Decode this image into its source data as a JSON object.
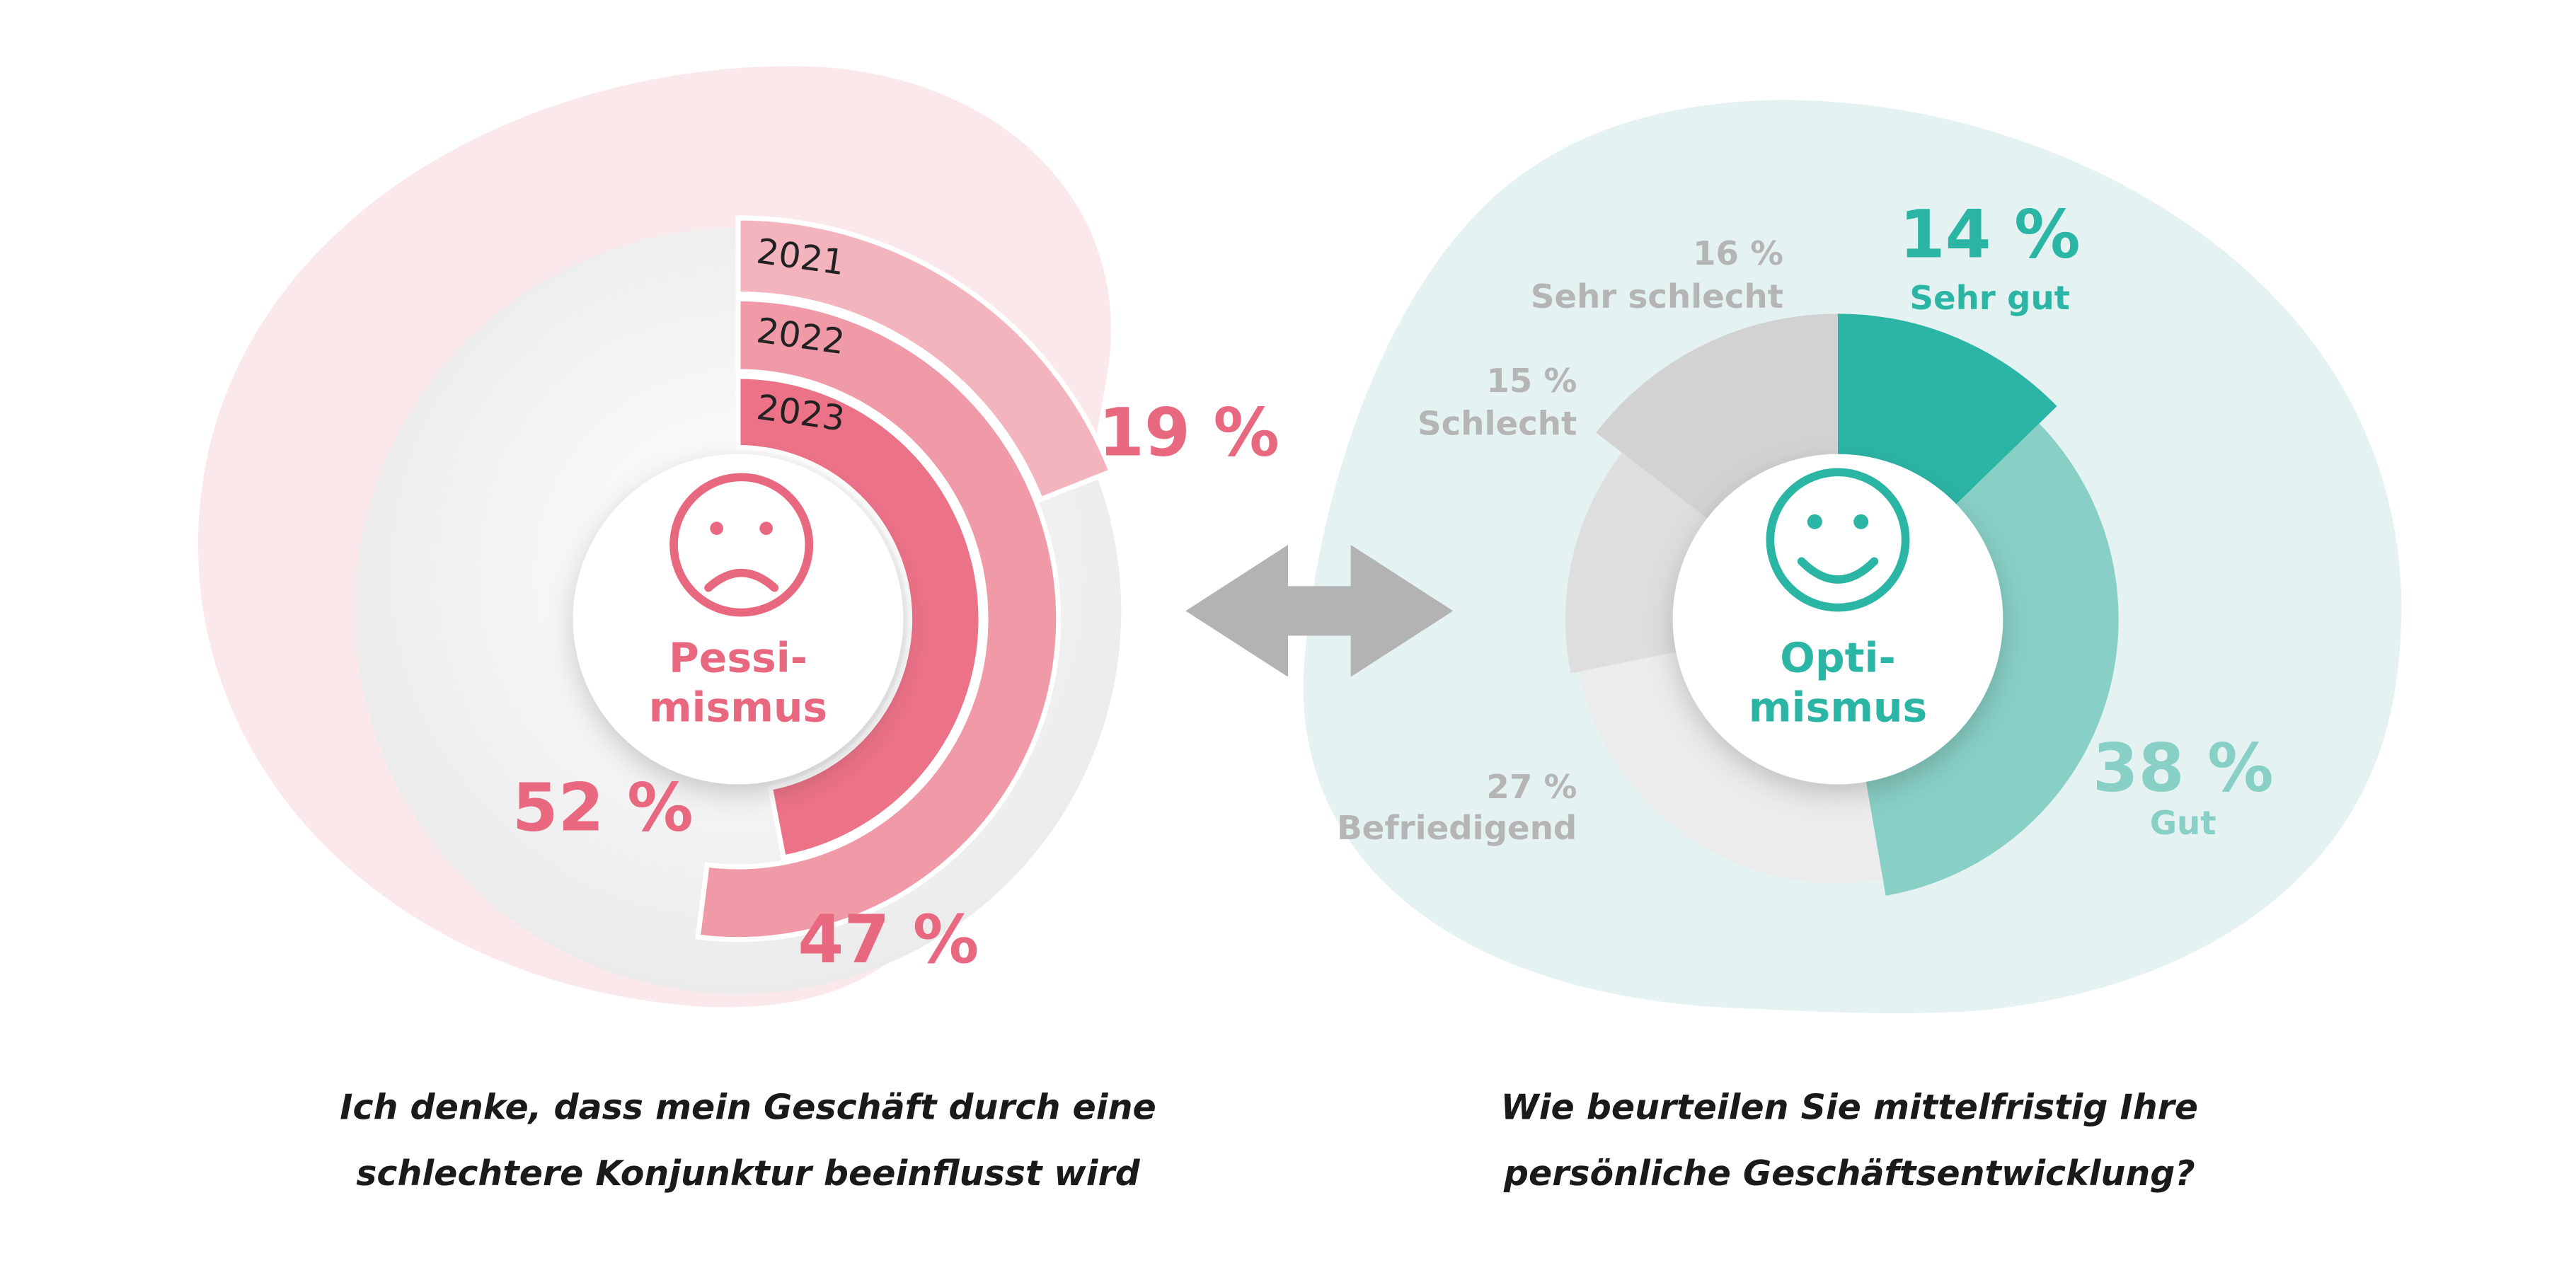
{
  "chart_data": [
    {
      "type": "radial_bar",
      "categories": [
        "2021",
        "2022",
        "2023"
      ],
      "values": [
        19,
        52,
        47
      ],
      "value_labels": [
        "19 %",
        "52 %",
        "47 %"
      ],
      "colors": [
        "#f3b4be",
        "#f09aa8",
        "#ec7288"
      ],
      "label_color": "#e8687f",
      "center_label": [
        "Pessi-",
        "mismus"
      ],
      "caption": [
        "Ich denke, dass mein Geschäft durch eine",
        "schlechtere Konjunktur beeinflusst wird"
      ]
    },
    {
      "type": "donut",
      "categories": [
        "Sehr gut",
        "Gut",
        "Befriedigend",
        "Schlecht",
        "Sehr schlecht"
      ],
      "values": [
        14,
        38,
        27,
        15,
        16
      ],
      "value_labels": [
        "14 %",
        "38 %",
        "27 %",
        "15 %",
        "16 %"
      ],
      "colors": [
        "#2bb5a5",
        "#88cfc5",
        "#ececec",
        "#dedede",
        "#d2d2d2"
      ],
      "label_colors": [
        "#2bb5a5",
        "#88cfc5",
        "#b5b5b5",
        "#b5b5b5",
        "#b5b5b5"
      ],
      "label_color": "#2bb5a5",
      "center_label": [
        "Opti-",
        "mismus"
      ],
      "caption": [
        "Wie beurteilen Sie mittelfristig Ihre",
        "persönliche Geschäftsentwicklung?"
      ]
    }
  ]
}
